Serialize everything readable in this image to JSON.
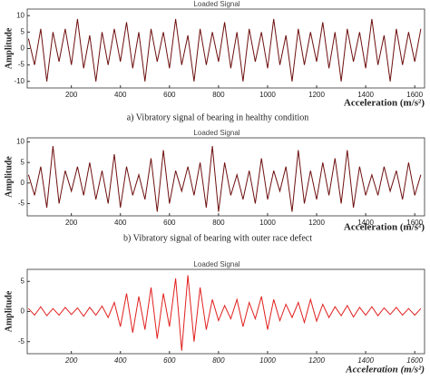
{
  "chart_data": [
    {
      "type": "line",
      "title": "Loaded Signal",
      "xlabel": "Acceleration (m/s²)",
      "ylabel": "Amplitude",
      "caption": "a) Vibratory signal of bearing in healthy condition",
      "color": "#6e0f0f",
      "xlim": [
        20,
        1640
      ],
      "xticks": [
        200,
        400,
        600,
        800,
        1000,
        1200,
        1400,
        1600
      ],
      "ylim": [
        -12,
        12
      ],
      "yticks": [
        -10,
        -5,
        0,
        5,
        10
      ],
      "x": [
        25,
        50,
        75,
        100,
        125,
        150,
        175,
        200,
        225,
        250,
        275,
        300,
        325,
        350,
        375,
        400,
        425,
        450,
        475,
        500,
        525,
        550,
        575,
        600,
        625,
        650,
        675,
        700,
        725,
        750,
        775,
        800,
        825,
        850,
        875,
        900,
        925,
        950,
        975,
        1000,
        1025,
        1050,
        1075,
        1100,
        1125,
        1150,
        1175,
        1200,
        1225,
        1250,
        1275,
        1300,
        1325,
        1350,
        1375,
        1400,
        1425,
        1450,
        1475,
        1500,
        1525,
        1550,
        1575,
        1600,
        1625
      ],
      "values": [
        3,
        -5,
        6,
        -10,
        5,
        -4,
        6,
        -5,
        9,
        -6,
        4,
        -10,
        5,
        -5,
        6,
        -4,
        8,
        -6,
        5,
        -10,
        6,
        -4,
        5,
        -6,
        9,
        -5,
        4,
        -10,
        6,
        -5,
        5,
        -4,
        8,
        -6,
        5,
        -10,
        6,
        -4,
        5,
        -6,
        9,
        -5,
        4,
        -10,
        6,
        -5,
        5,
        -4,
        8,
        -6,
        5,
        -10,
        6,
        -4,
        5,
        -6,
        9,
        -5,
        4,
        -10,
        6,
        -5,
        5,
        -4,
        6
      ]
    },
    {
      "type": "line",
      "title": "Loaded Signal",
      "xlabel": "Acceleration (m/s²)",
      "ylabel": "Amplitude",
      "caption": "b) Vibratory signal of bearing with outer race defect",
      "color": "#6e0f0f",
      "xlim": [
        20,
        1640
      ],
      "xticks": [
        200,
        400,
        600,
        800,
        1000,
        1200,
        1400,
        1600
      ],
      "ylim": [
        -8,
        11
      ],
      "yticks": [
        -5,
        0,
        5,
        10
      ],
      "x": [
        25,
        50,
        75,
        100,
        125,
        150,
        175,
        200,
        225,
        250,
        275,
        300,
        325,
        350,
        375,
        400,
        425,
        450,
        475,
        500,
        525,
        550,
        575,
        600,
        625,
        650,
        675,
        700,
        725,
        750,
        775,
        800,
        825,
        850,
        875,
        900,
        925,
        950,
        975,
        1000,
        1025,
        1050,
        1075,
        1100,
        1125,
        1150,
        1175,
        1200,
        1225,
        1250,
        1275,
        1300,
        1325,
        1350,
        1375,
        1400,
        1425,
        1450,
        1475,
        1500,
        1525,
        1550,
        1575,
        1600,
        1625
      ],
      "values": [
        2,
        -3,
        4,
        -6,
        9,
        -5,
        3,
        -2,
        4,
        -3,
        5,
        -4,
        3,
        -5,
        7,
        -6,
        4,
        -3,
        2,
        -4,
        6,
        -7,
        8,
        -5,
        3,
        -2,
        4,
        -3,
        5,
        -6,
        9,
        -7,
        5,
        -3,
        2,
        -4,
        3,
        -5,
        6,
        -4,
        3,
        -2,
        4,
        -7,
        8,
        -5,
        3,
        -4,
        5,
        -3,
        6,
        -5,
        8,
        -6,
        4,
        -3,
        2,
        -3,
        4,
        -2,
        3,
        -4,
        5,
        -3,
        2
      ]
    },
    {
      "type": "line",
      "title": "Loaded Signal",
      "xlabel": "Acceleration (m/s²)",
      "ylabel": "Amplitude",
      "color": "#e0201e",
      "xlim": [
        20,
        1640
      ],
      "xticks": [
        200,
        400,
        600,
        800,
        1000,
        1200,
        1400,
        1600
      ],
      "ylim": [
        -7,
        7
      ],
      "yticks": [
        -5,
        0,
        5
      ],
      "x": [
        25,
        50,
        75,
        100,
        125,
        150,
        175,
        200,
        225,
        250,
        275,
        300,
        325,
        350,
        375,
        400,
        425,
        450,
        475,
        500,
        525,
        550,
        575,
        600,
        625,
        650,
        675,
        700,
        725,
        750,
        775,
        800,
        825,
        850,
        875,
        900,
        925,
        950,
        975,
        1000,
        1025,
        1050,
        1075,
        1100,
        1125,
        1150,
        1175,
        1200,
        1225,
        1250,
        1275,
        1300,
        1325,
        1350,
        1375,
        1400,
        1425,
        1450,
        1475,
        1500,
        1525,
        1550,
        1575,
        1600,
        1625
      ],
      "values": [
        0.5,
        -0.6,
        0.8,
        -0.7,
        0.5,
        -0.6,
        0.7,
        -0.5,
        0.6,
        -0.8,
        0.7,
        -0.6,
        0.9,
        -1,
        1.5,
        -2.5,
        3,
        -3.5,
        2.5,
        -3,
        4,
        -4.5,
        3,
        -2.5,
        5.5,
        -6.5,
        6,
        -5,
        4,
        -3,
        2,
        -1.5,
        1,
        -1.2,
        2,
        -2.5,
        1.5,
        -1.2,
        2.5,
        -3,
        2,
        -1.5,
        1.2,
        -1,
        1.5,
        -1.8,
        2,
        -1.6,
        1.2,
        -1,
        0.8,
        -0.7,
        1,
        -0.9,
        0.7,
        -0.6,
        0.8,
        -0.7,
        0.6,
        -0.5,
        0.7,
        -0.6,
        0.5,
        -0.6,
        0.5
      ]
    }
  ]
}
